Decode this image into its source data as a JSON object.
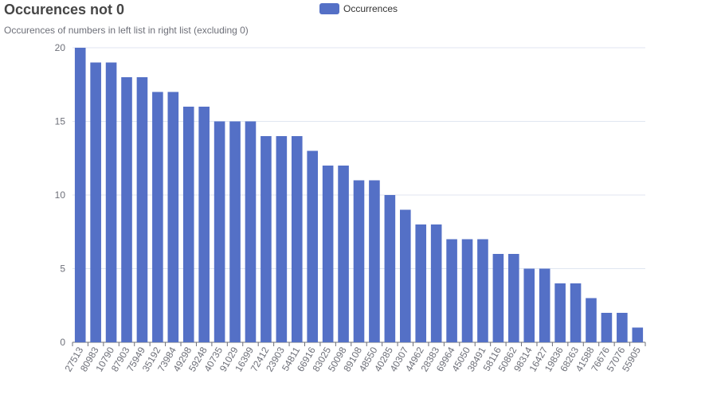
{
  "header": {
    "title": "Occurences not 0",
    "subtitle": "Occurences of numbers in left list in right list (excluding 0)"
  },
  "colors": {
    "bar": "#5470c6",
    "grid": "#e0e6f1",
    "axis": "#6e7079"
  },
  "chart_data": {
    "type": "bar",
    "title": "Occurences not 0",
    "subtitle": "Occurences of numbers in left list in right list (excluding 0)",
    "xlabel": "",
    "ylabel": "",
    "ylim": [
      0,
      20
    ],
    "yticks": [
      0,
      5,
      10,
      15,
      20
    ],
    "grid": true,
    "legend": {
      "position": "top-center",
      "entries": [
        "Occurrences"
      ]
    },
    "categories": [
      "27513",
      "80983",
      "10790",
      "87903",
      "75949",
      "35192",
      "73984",
      "49298",
      "59248",
      "40735",
      "91029",
      "16399",
      "72412",
      "23903",
      "54811",
      "66916",
      "83025",
      "50098",
      "89108",
      "48550",
      "40285",
      "40307",
      "44962",
      "28383",
      "69964",
      "45050",
      "38491",
      "58116",
      "50862",
      "98314",
      "16427",
      "19836",
      "68263",
      "41588",
      "76676",
      "57076",
      "55905"
    ],
    "series": [
      {
        "name": "Occurrences",
        "values": [
          20,
          19,
          19,
          18,
          18,
          17,
          17,
          16,
          16,
          15,
          15,
          15,
          14,
          14,
          14,
          13,
          12,
          12,
          11,
          11,
          10,
          9,
          8,
          8,
          7,
          7,
          7,
          6,
          6,
          5,
          5,
          4,
          4,
          3,
          2,
          2,
          1
        ]
      }
    ]
  }
}
